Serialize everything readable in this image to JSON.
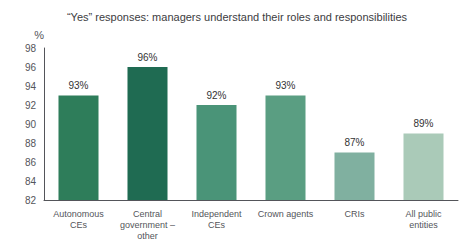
{
  "chart_data": {
    "type": "bar",
    "title": "“Yes” responses: managers understand their roles and responsibilities",
    "ylabel": "%",
    "categories": [
      "Autonomous\nCEs",
      "Central\ngovernment –\nother",
      "Independent\nCEs",
      "Crown agents",
      "CRIs",
      "All public\nentities"
    ],
    "values": [
      93,
      96,
      92,
      93,
      87,
      89
    ],
    "value_labels": [
      "93%",
      "96%",
      "92%",
      "93%",
      "87%",
      "89%"
    ],
    "colors": [
      "#2e7d5a",
      "#1f6b52",
      "#4a9478",
      "#5a9e82",
      "#80b0a0",
      "#aacab8"
    ],
    "ylim": [
      82,
      98
    ],
    "yticks": [
      82,
      84,
      86,
      88,
      90,
      92,
      94,
      96,
      98
    ],
    "grid": false,
    "data_labels": true
  }
}
